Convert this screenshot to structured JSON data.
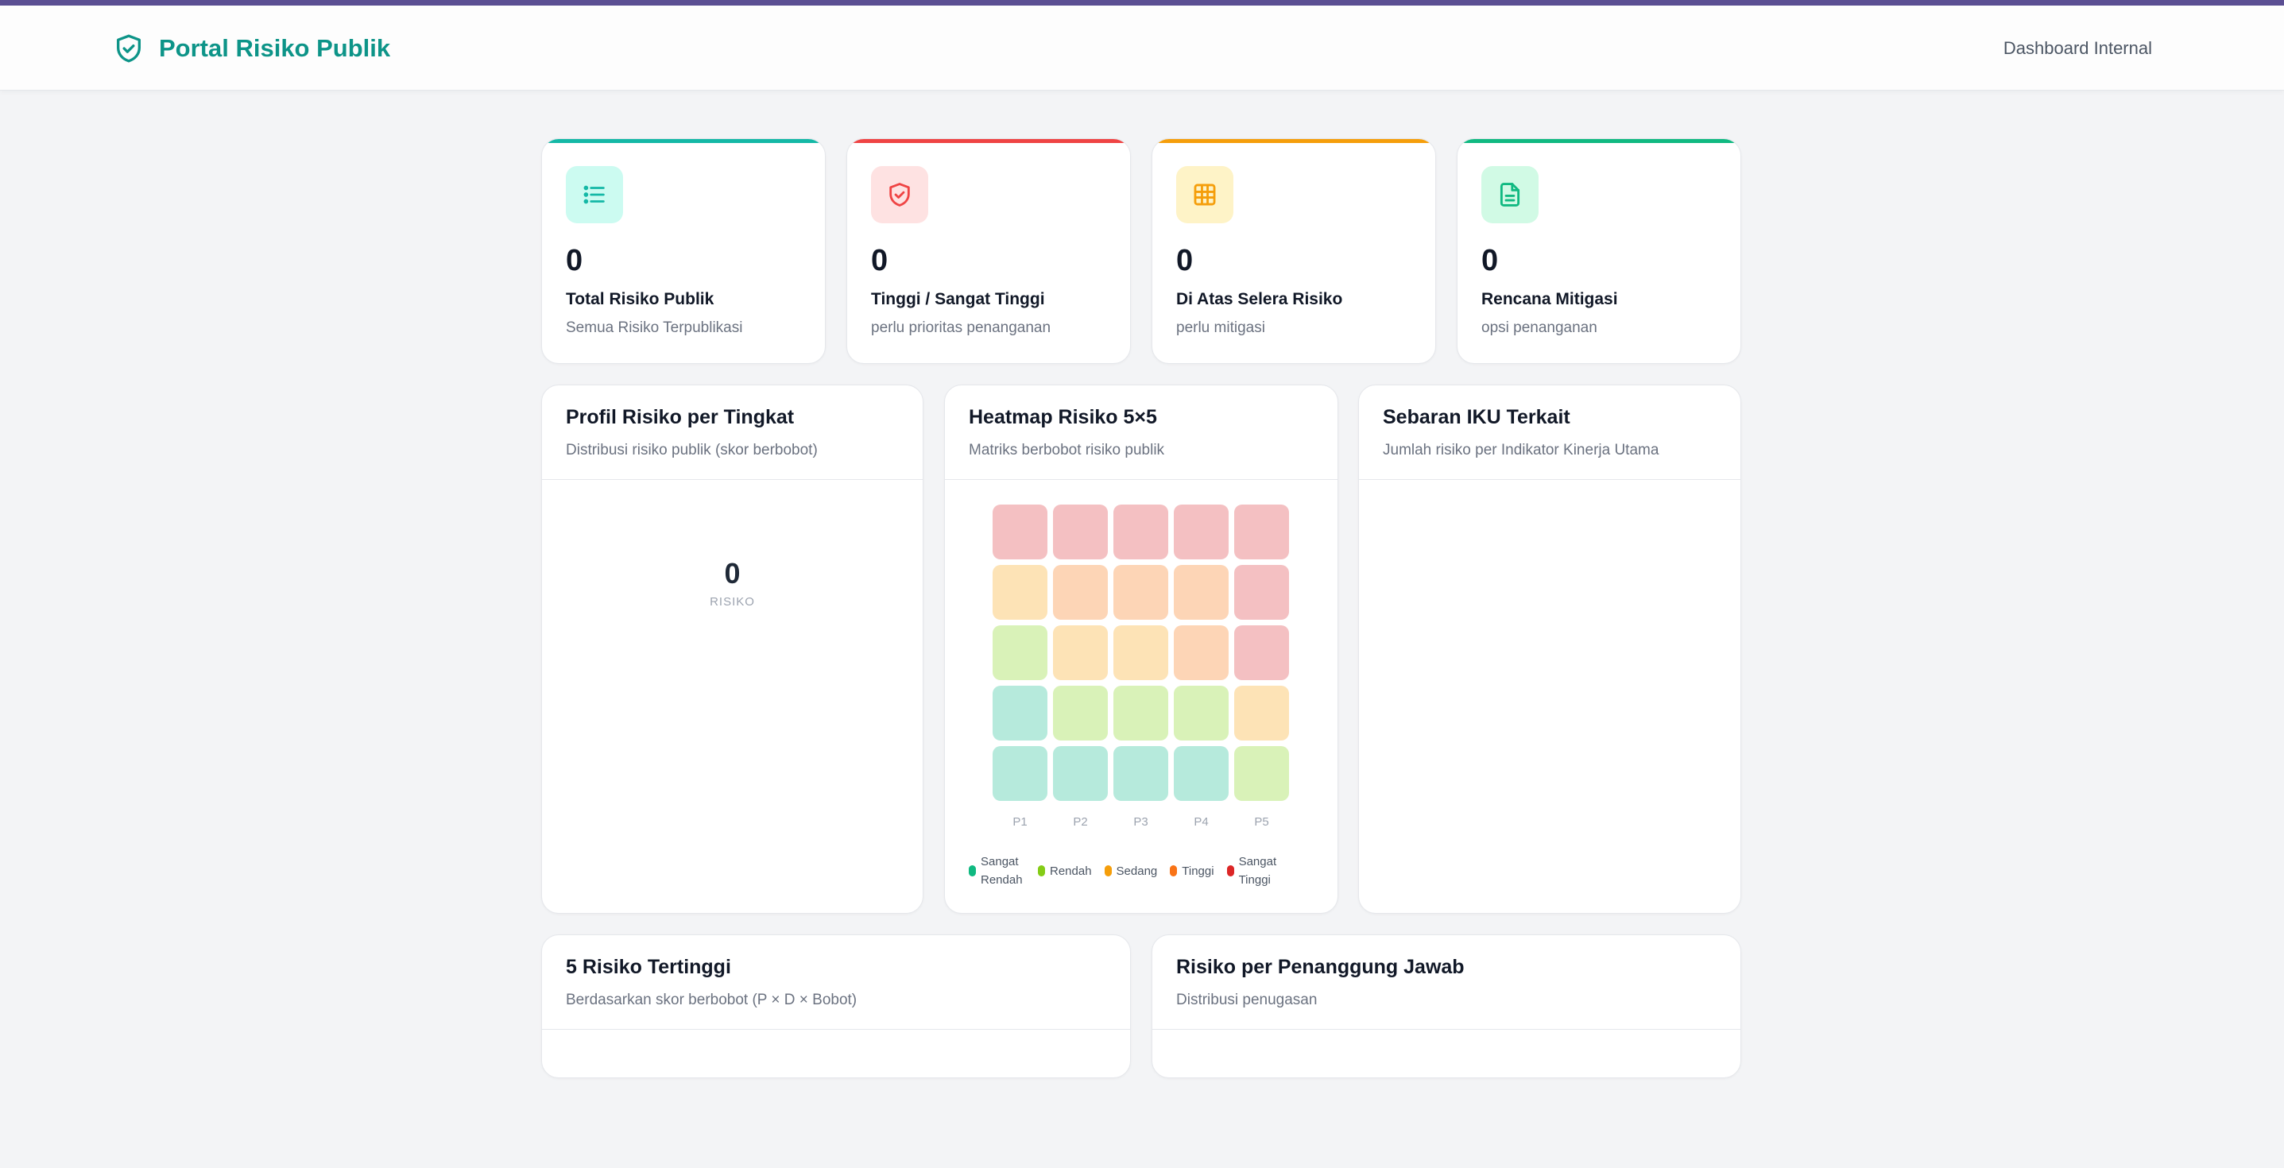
{
  "header": {
    "title": "Portal Risiko Publik",
    "nav_link": "Dashboard Internal",
    "accent": "#0d9488"
  },
  "stats": [
    {
      "value": "0",
      "label": "Total Risiko Publik",
      "sub": "Semua Risiko Terpublikasi",
      "icon": "list-icon",
      "color": "#14b8a6"
    },
    {
      "value": "0",
      "label": "Tinggi / Sangat Tinggi",
      "sub": "perlu prioritas penanganan",
      "icon": "shield-check-icon",
      "color": "#ef4444"
    },
    {
      "value": "0",
      "label": "Di Atas Selera Risiko",
      "sub": "perlu mitigasi",
      "icon": "grid-icon",
      "color": "#f59e0b"
    },
    {
      "value": "0",
      "label": "Rencana Mitigasi",
      "sub": "opsi penanganan",
      "icon": "document-icon",
      "color": "#10b981"
    }
  ],
  "profile": {
    "title": "Profil Risiko per Tingkat",
    "sub": "Distribusi risiko publik (skor berbobot)",
    "total": "0",
    "total_label": "RISIKO"
  },
  "heatmap": {
    "title": "Heatmap Risiko 5×5",
    "sub": "Matriks berbobot risiko publik",
    "x_labels": [
      "P1",
      "P2",
      "P3",
      "P4",
      "P5"
    ],
    "legend": [
      {
        "label": "Sangat Rendah",
        "color": "#10b981"
      },
      {
        "label": "Rendah",
        "color": "#84cc16"
      },
      {
        "label": "Sedang",
        "color": "#f59e0b"
      },
      {
        "label": "Tinggi",
        "color": "#f97316"
      },
      {
        "label": "Sangat Tinggi",
        "color": "#dc2626"
      }
    ],
    "grid_levels": [
      [
        "very-high",
        "very-high",
        "very-high",
        "very-high",
        "very-high"
      ],
      [
        "medium",
        "high",
        "high",
        "high",
        "very-high"
      ],
      [
        "low",
        "medium",
        "medium",
        "high",
        "very-high"
      ],
      [
        "very-low",
        "low",
        "low",
        "low",
        "medium"
      ],
      [
        "very-low",
        "very-low",
        "very-low",
        "very-low",
        "low"
      ]
    ],
    "level_colors": {
      "very-low": "#b6eadc",
      "low": "#d9f2b8",
      "medium": "#fde3b6",
      "high": "#fdd5b6",
      "very-high": "#f4c0c2"
    }
  },
  "iku": {
    "title": "Sebaran IKU Terkait",
    "sub": "Jumlah risiko per Indikator Kinerja Utama"
  },
  "top5": {
    "title": "5 Risiko Tertinggi",
    "sub": "Berdasarkan skor berbobot (P × D × Bobot)"
  },
  "owners": {
    "title": "Risiko per Penanggung Jawab",
    "sub": "Distribusi penugasan"
  }
}
